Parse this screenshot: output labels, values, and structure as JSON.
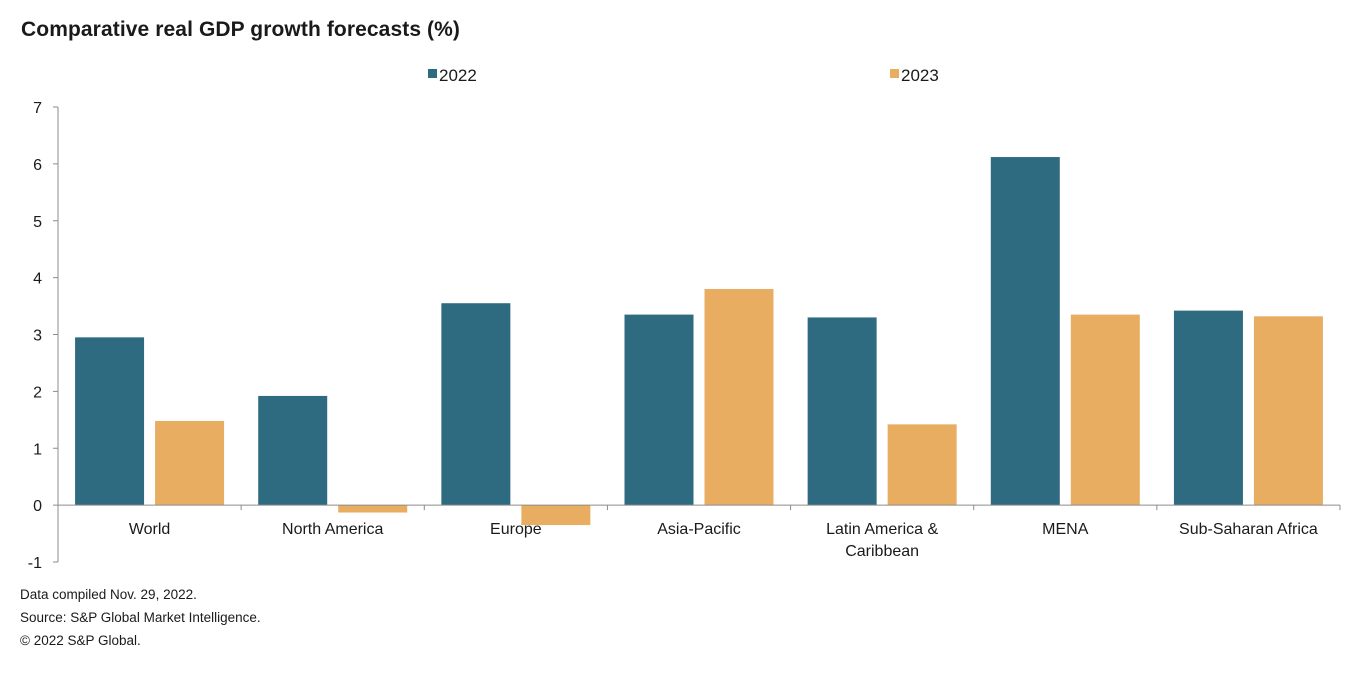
{
  "chart_data": {
    "type": "bar",
    "title": "Comparative real GDP growth forecasts (%)",
    "categories": [
      [
        "World"
      ],
      [
        "North America"
      ],
      [
        "Europe"
      ],
      [
        "Asia-Pacific"
      ],
      [
        "Latin America &",
        "Caribbean"
      ],
      [
        "MENA"
      ],
      [
        "Sub-Saharan Africa"
      ]
    ],
    "series": [
      {
        "name": "2022",
        "color": "#2e6b80",
        "values": [
          2.95,
          1.92,
          3.55,
          3.35,
          3.3,
          6.12,
          3.42
        ]
      },
      {
        "name": "2023",
        "color": "#e8ad60",
        "values": [
          1.48,
          -0.13,
          -0.35,
          3.8,
          1.42,
          3.35,
          3.32
        ]
      }
    ],
    "ylim": [
      -1,
      7
    ],
    "yticks": [
      -1,
      0,
      1,
      2,
      3,
      4,
      5,
      6,
      7
    ],
    "grid": false,
    "legend_position": "top-center",
    "xlabel": "",
    "ylabel": ""
  },
  "footnotes": {
    "compiled": "Data compiled Nov. 29, 2022.",
    "source": "Source: S&P Global Market Intelligence.",
    "copyright": "© 2022 S&P Global."
  }
}
